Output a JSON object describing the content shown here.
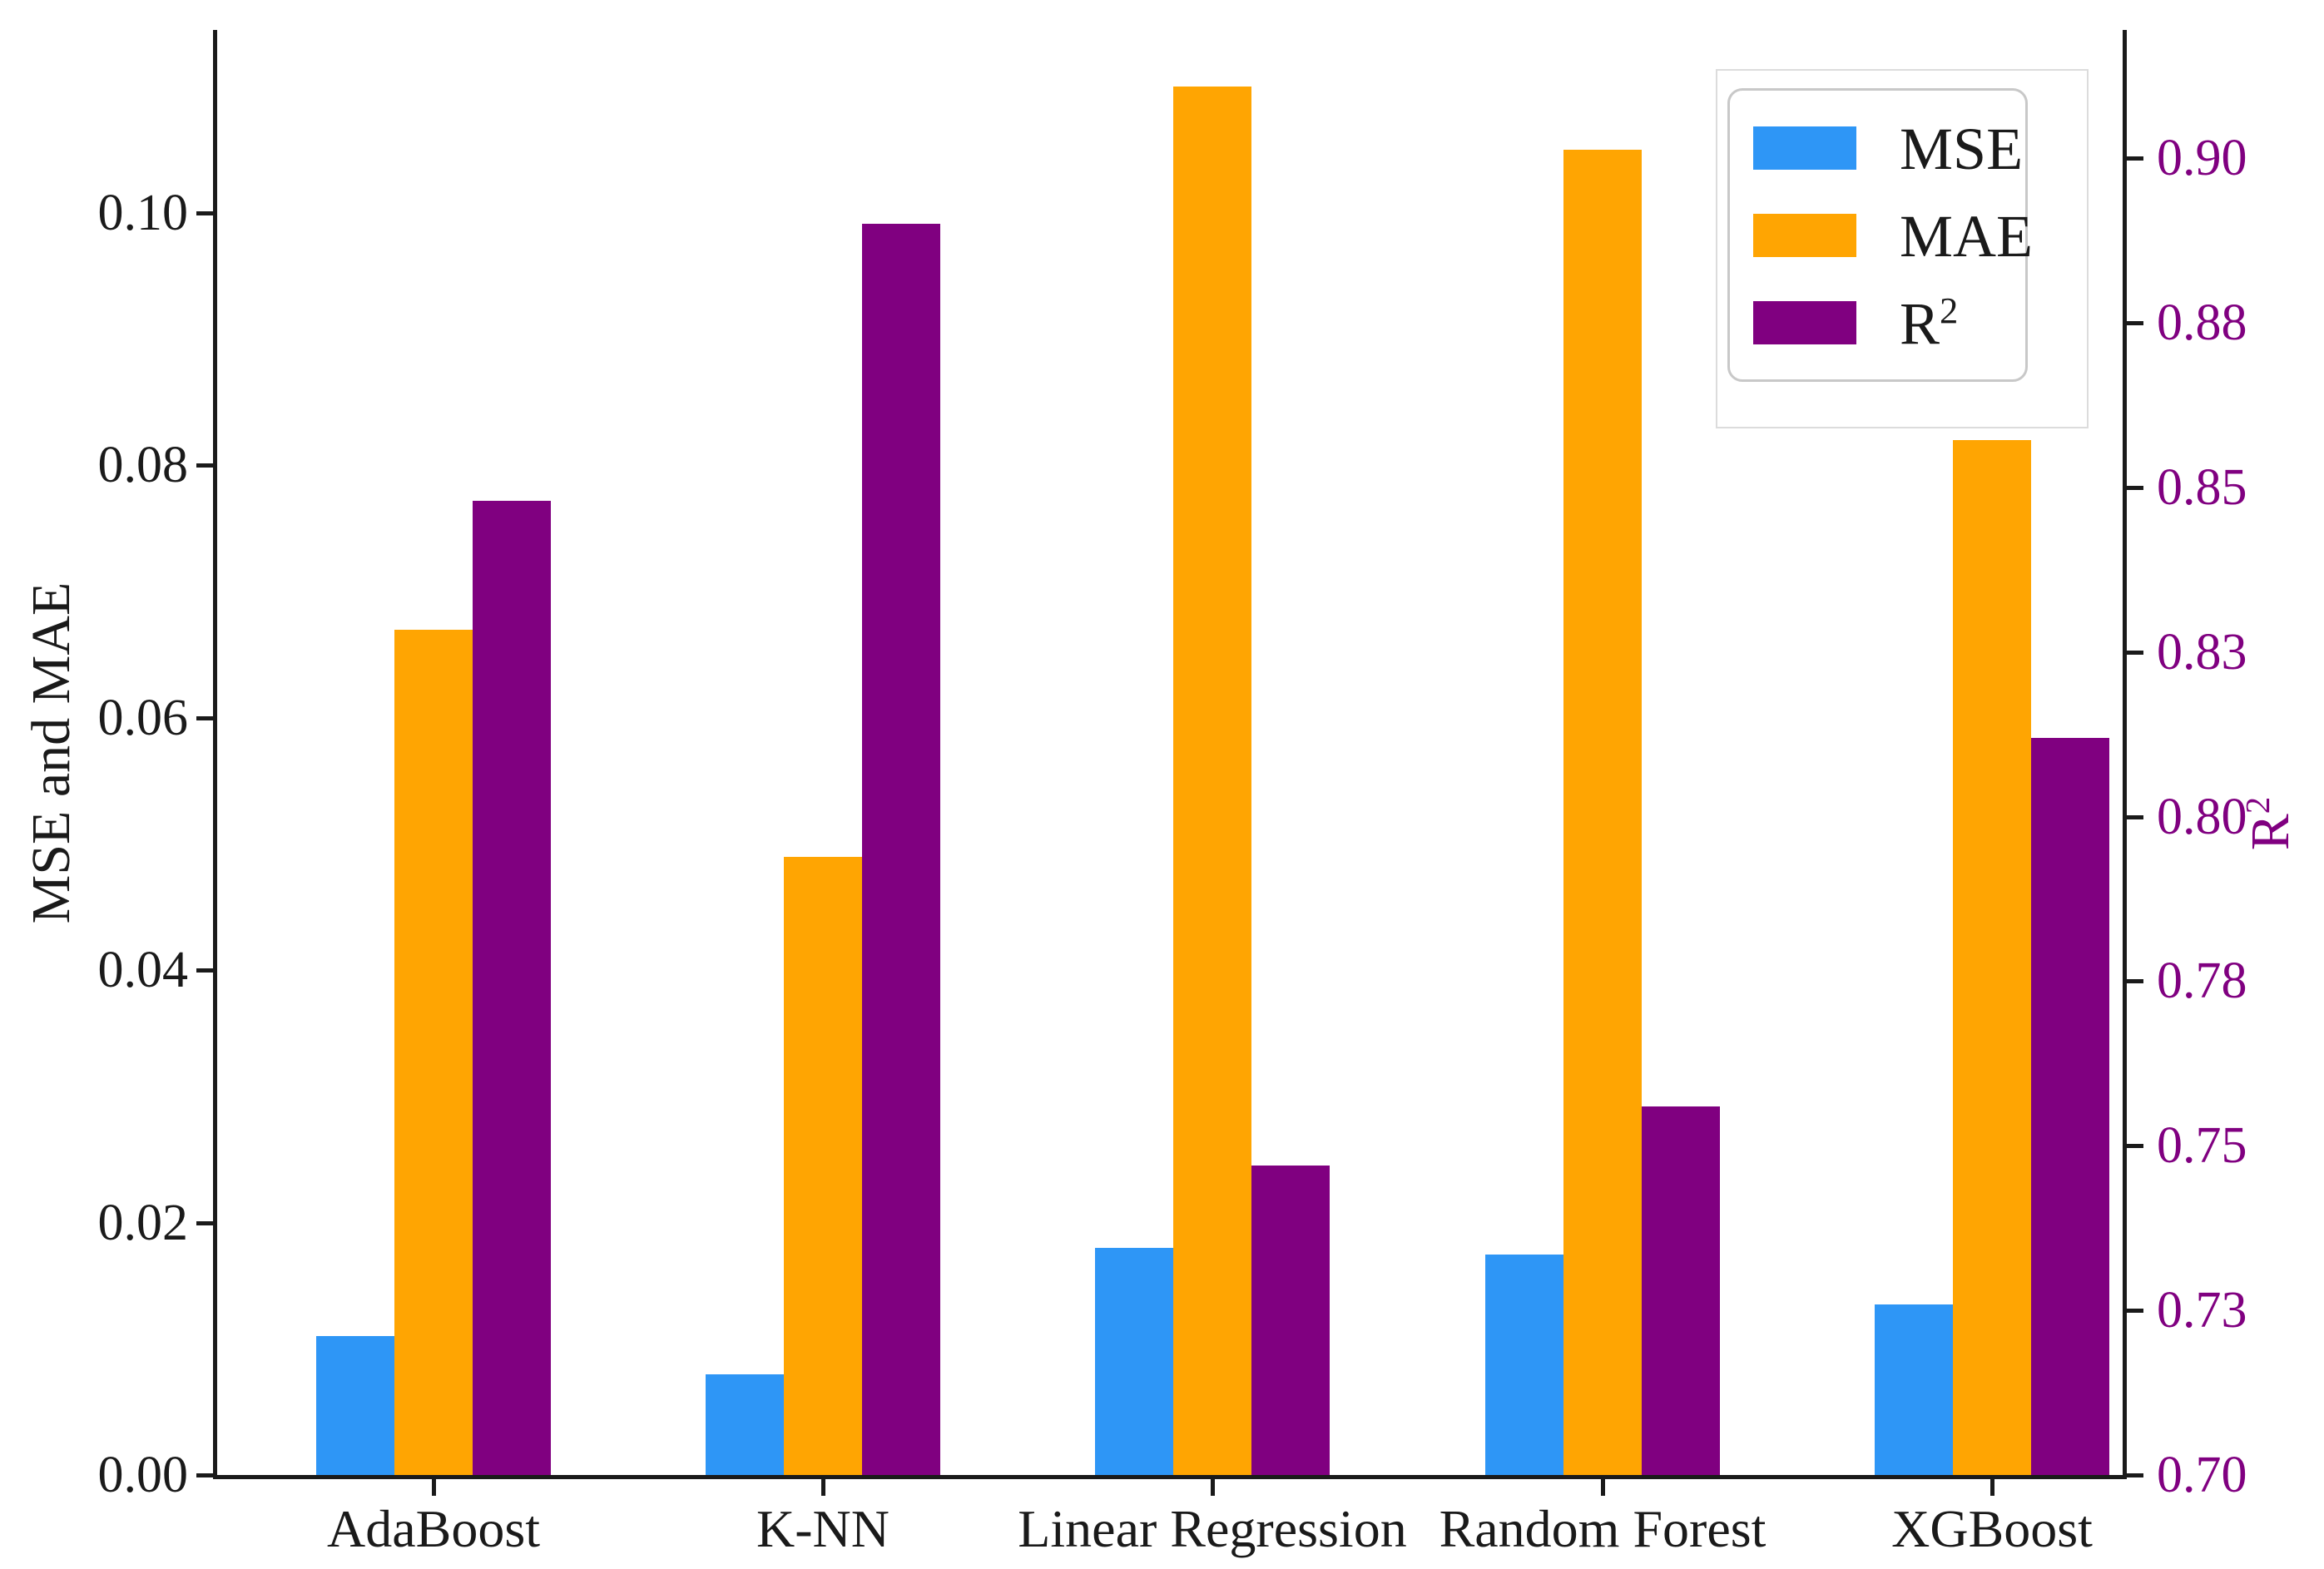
{
  "chart_data": {
    "type": "bar",
    "title": "",
    "categories": [
      "AdaBoost",
      "K-NN",
      "Linear Regression",
      "Random Forest",
      "XGBoost"
    ],
    "series": [
      {
        "name": "MSE",
        "axis": "left",
        "color": "#2E96F6",
        "values": [
          0.011,
          0.008,
          0.018,
          0.0175,
          0.0135
        ]
      },
      {
        "name": "MAE",
        "axis": "left",
        "color": "#FFA502",
        "values": [
          0.067,
          0.049,
          0.11,
          0.105,
          0.082
        ]
      },
      {
        "name": "R²",
        "axis": "right",
        "color": "#800080",
        "values": [
          0.848,
          0.89,
          0.747,
          0.756,
          0.812
        ]
      }
    ],
    "left_axis": {
      "label": "MSE and MAE",
      "ylim": [
        0,
        0.1145
      ],
      "tick_values": [
        0.0,
        0.02,
        0.04,
        0.06,
        0.08,
        0.1
      ],
      "tick_labels": [
        "0.00",
        "0.02",
        "0.04",
        "0.06",
        "0.08",
        "0.10"
      ],
      "text_color": "#1a1a1a"
    },
    "right_axis": {
      "label_base": "R",
      "label_sup": "2",
      "ylim": [
        0.7,
        0.9195
      ],
      "tick_values": [
        0.7,
        0.725,
        0.75,
        0.775,
        0.8,
        0.825,
        0.85,
        0.875,
        0.9
      ],
      "tick_labels": [
        "0.70",
        "0.73",
        "0.75",
        "0.78",
        "0.80",
        "0.83",
        "0.85",
        "0.88",
        "0.90"
      ],
      "text_color": "#800080"
    },
    "legend": {
      "position": "upper right",
      "entries": [
        {
          "label_base": "MSE",
          "label_sup": ""
        },
        {
          "label_base": "MAE",
          "label_sup": ""
        },
        {
          "label_base": "R",
          "label_sup": "2"
        }
      ]
    },
    "grid": false
  }
}
